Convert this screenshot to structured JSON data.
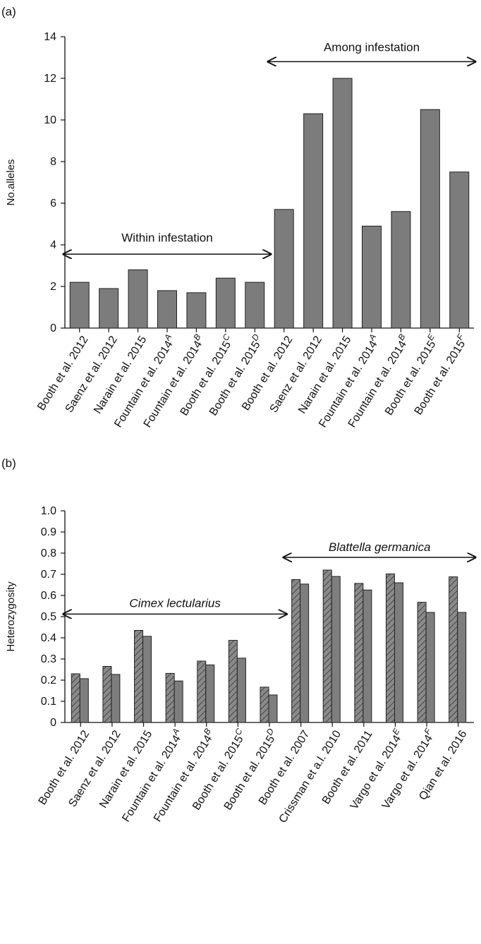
{
  "chart_data": [
    {
      "type": "bar",
      "panel_label": "(a)",
      "ylabel": "No.alleles",
      "xlabel": "",
      "ylim": [
        0,
        14
      ],
      "yticks": [
        0,
        2,
        4,
        6,
        8,
        10,
        12,
        14
      ],
      "grid": false,
      "categories": [
        {
          "text": "Booth et al. 2012",
          "sup": ""
        },
        {
          "text": "Saenz et al. 2012",
          "sup": ""
        },
        {
          "text": "Narain et al. 2015",
          "sup": ""
        },
        {
          "text": "Fountain et al. 2014",
          "sup": "A"
        },
        {
          "text": "Fountain et al. 2014",
          "sup": "B"
        },
        {
          "text": "Booth et al. 2015",
          "sup": "C"
        },
        {
          "text": "Booth et al. 2015",
          "sup": "D"
        },
        {
          "text": "Booth et al. 2012",
          "sup": ""
        },
        {
          "text": "Saenz et al. 2012",
          "sup": ""
        },
        {
          "text": "Narain et al. 2015",
          "sup": ""
        },
        {
          "text": "Fountain et al. 2014",
          "sup": "A"
        },
        {
          "text": "Fountain et al. 2014",
          "sup": "B"
        },
        {
          "text": "Booth et al. 2015",
          "sup": "E"
        },
        {
          "text": "Booth et al. 2015",
          "sup": "F"
        }
      ],
      "series": [
        {
          "values": [
            2.2,
            1.9,
            2.8,
            1.8,
            1.7,
            2.4,
            2.2,
            5.7,
            10.3,
            12.0,
            4.9,
            5.6,
            10.5,
            7.5
          ],
          "fill": "#7c7c7c"
        }
      ],
      "annotations": [
        {
          "text": "Within infestation",
          "italic": false,
          "from_index": 0,
          "to_index": 6,
          "y": 3.55,
          "label_y": 4.15
        },
        {
          "text": "Among infestation",
          "italic": false,
          "from_index": 7,
          "to_index": 13,
          "y": 12.8,
          "label_y": 13.3
        }
      ]
    },
    {
      "type": "bar",
      "panel_label": "(b)",
      "ylabel": "Heterozygosity",
      "xlabel": "",
      "ylim": [
        0,
        1.0
      ],
      "yticks": [
        "0",
        "0.1",
        "0.2",
        "0.3",
        "0.4",
        "0.5",
        "0.6",
        "0.7",
        "0.8",
        "0.9",
        "1.0"
      ],
      "grid": false,
      "categories": [
        {
          "text": "Booth et al. 2012",
          "sup": ""
        },
        {
          "text": "Saenz et al. 2012",
          "sup": ""
        },
        {
          "text": "Narain et al. 2015",
          "sup": ""
        },
        {
          "text": "Fountain et al. 2014",
          "sup": "A"
        },
        {
          "text": "Fountain et al. 2014",
          "sup": "B"
        },
        {
          "text": "Booth et al. 2015",
          "sup": "C"
        },
        {
          "text": "Booth et al. 2015",
          "sup": "D"
        },
        {
          "text": "Booth et al. 2007",
          "sup": ""
        },
        {
          "text": "Crissman et a.l. 2010",
          "sup": ""
        },
        {
          "text": "Booth et al. 2011",
          "sup": ""
        },
        {
          "text": "Vargo et al. 2014",
          "sup": "E"
        },
        {
          "text": "Vargo et al. 2014",
          "sup": "F"
        },
        {
          "text": "Qian et al. 2016",
          "sup": ""
        }
      ],
      "series": [
        {
          "values": [
            0.23,
            0.265,
            0.435,
            0.232,
            0.29,
            0.388,
            0.167,
            0.675,
            0.72,
            0.657,
            0.702,
            0.568,
            0.688
          ],
          "fill": "#808080",
          "hatched": true
        },
        {
          "values": [
            0.207,
            0.227,
            0.407,
            0.196,
            0.272,
            0.304,
            0.13,
            0.654,
            0.69,
            0.626,
            0.66,
            0.52,
            0.52
          ],
          "fill": "#7e7e7e",
          "hatched": false
        }
      ],
      "annotations": [
        {
          "text": "Cimex lectularius",
          "italic": true,
          "from_index": 0,
          "to_index": 6,
          "y": 0.512,
          "label_y": 0.545
        },
        {
          "text": "Blattella germanica",
          "italic": true,
          "from_index": 7,
          "to_index": 12,
          "y": 0.78,
          "label_y": 0.81
        }
      ]
    }
  ]
}
